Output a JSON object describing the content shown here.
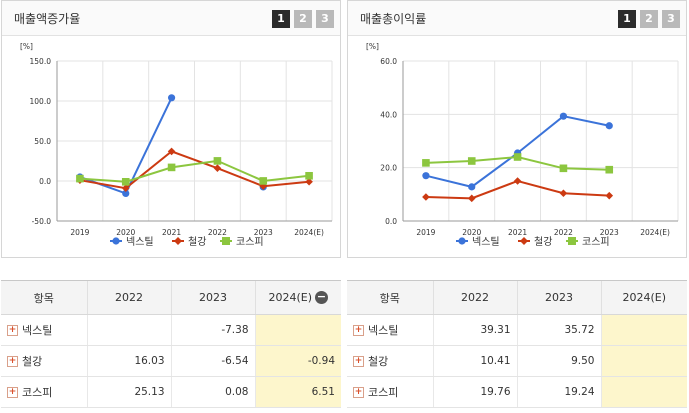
{
  "pager": [
    "1",
    "2",
    "3"
  ],
  "left": {
    "title": "매출액증가율",
    "unit": "[%]",
    "chart_data": {
      "type": "line",
      "x": [
        "2019",
        "2020",
        "2021",
        "2022",
        "2023",
        "2024(E)"
      ],
      "ylim": [
        -50,
        150
      ],
      "yticks": [
        "150.0",
        "100.0",
        "50.0",
        "0.0",
        "-50.0"
      ],
      "ytick_values": [
        150,
        100,
        50,
        0,
        -50
      ],
      "grid": true,
      "legend_position": "bottom",
      "series": [
        {
          "name": "넥스틸",
          "color": "#3b73d9",
          "marker": "circle",
          "values": [
            5.0,
            -15.5,
            104.0,
            null,
            -7.38,
            null
          ]
        },
        {
          "name": "철강",
          "color": "#cc3a12",
          "marker": "diamond",
          "values": [
            1.0,
            -9.0,
            37.0,
            16.03,
            -6.54,
            -0.94
          ]
        },
        {
          "name": "코스피",
          "color": "#8cc63f",
          "marker": "square",
          "values": [
            3.0,
            -1.0,
            17.0,
            25.13,
            0.08,
            6.51
          ]
        }
      ]
    },
    "table": {
      "headers": [
        "항목",
        "2022",
        "2023",
        "2024(E)"
      ],
      "rows": [
        {
          "label": "넥스틸",
          "values": [
            "",
            "-7.38",
            ""
          ]
        },
        {
          "label": "철강",
          "values": [
            "16.03",
            "-6.54",
            "-0.94"
          ]
        },
        {
          "label": "코스피",
          "values": [
            "25.13",
            "0.08",
            "6.51"
          ]
        }
      ]
    }
  },
  "right": {
    "title": "매출총이익률",
    "unit": "[%]",
    "chart_data": {
      "type": "line",
      "x": [
        "2019",
        "2020",
        "2021",
        "2022",
        "2023",
        "2024(E)"
      ],
      "ylim": [
        0,
        60
      ],
      "yticks": [
        "60.0",
        "40.0",
        "20.0",
        "0.0"
      ],
      "ytick_values": [
        60,
        40,
        20,
        0
      ],
      "grid": true,
      "legend_position": "bottom",
      "series": [
        {
          "name": "넥스틸",
          "color": "#3b73d9",
          "marker": "circle",
          "values": [
            17.0,
            12.8,
            25.5,
            39.31,
            35.72,
            null
          ]
        },
        {
          "name": "철강",
          "color": "#cc3a12",
          "marker": "diamond",
          "values": [
            9.0,
            8.5,
            15.0,
            10.41,
            9.5,
            null
          ]
        },
        {
          "name": "코스피",
          "color": "#8cc63f",
          "marker": "square",
          "values": [
            21.8,
            22.5,
            24.0,
            19.76,
            19.24,
            null
          ]
        }
      ]
    },
    "table": {
      "headers": [
        "항목",
        "2022",
        "2023",
        "2024(E)"
      ],
      "rows": [
        {
          "label": "넥스틸",
          "values": [
            "39.31",
            "35.72",
            ""
          ]
        },
        {
          "label": "철강",
          "values": [
            "10.41",
            "9.50",
            ""
          ]
        },
        {
          "label": "코스피",
          "values": [
            "19.76",
            "19.24",
            ""
          ]
        }
      ]
    }
  }
}
